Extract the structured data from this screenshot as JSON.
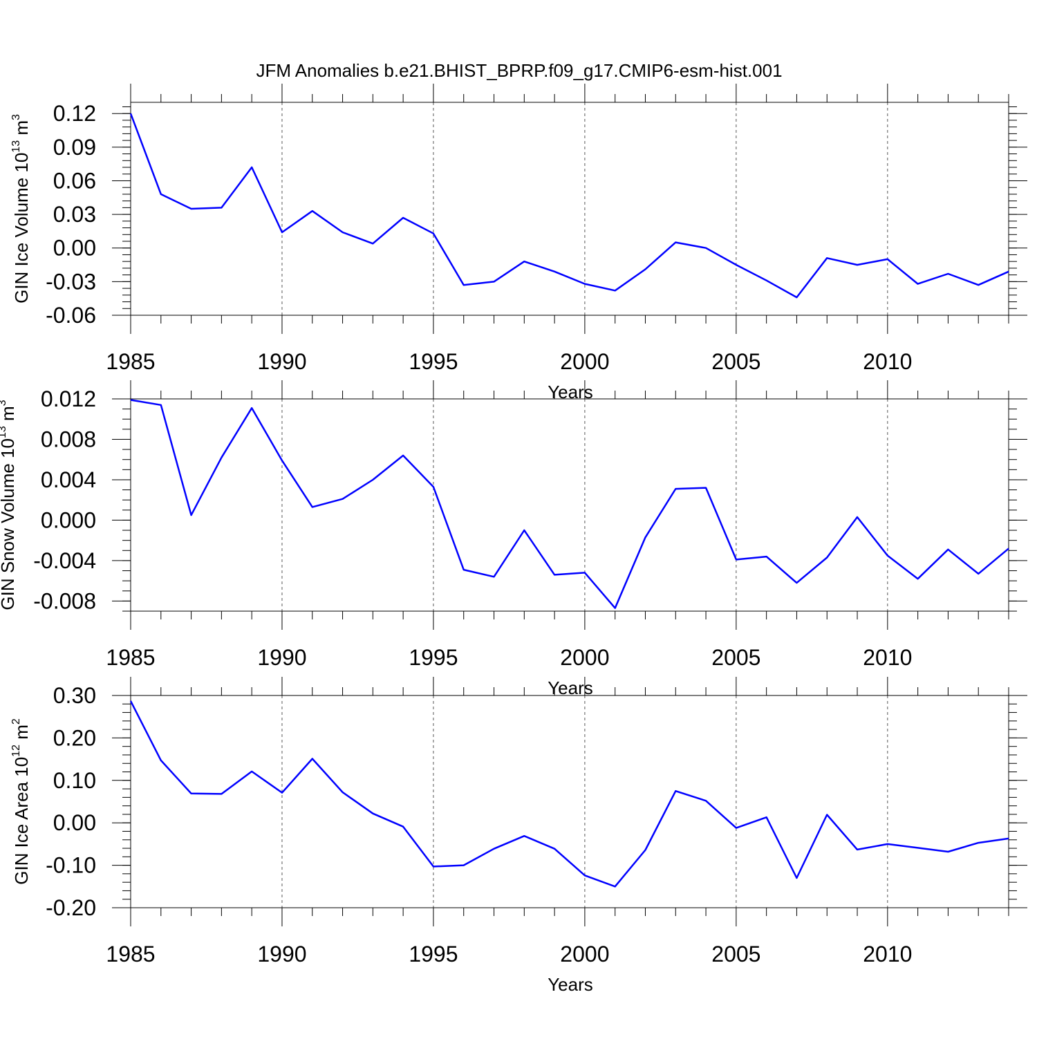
{
  "title": "JFM Anomalies b.e21.BHIST_BPRP.f09_g17.CMIP6-esm-hist.001",
  "chart_data": [
    {
      "type": "line",
      "ylabel": "GIN Ice Volume 10",
      "ylabel_exp": "13",
      "ylabel_unit": " m",
      "ylabel_unit_exp": "3",
      "xlabel": "Years",
      "xlim": [
        1985,
        2014
      ],
      "ylim": [
        -0.06,
        0.13
      ],
      "yticks": [
        -0.06,
        -0.03,
        0.0,
        0.03,
        0.06,
        0.09,
        0.12
      ],
      "ytick_labels": [
        "-0.06",
        "-0.03",
        "0.00",
        "0.03",
        "0.06",
        "0.09",
        "0.12"
      ],
      "yminor_step": 0.006,
      "xticks": [
        1985,
        1990,
        1995,
        2000,
        2005,
        2010
      ],
      "xtick_labels": [
        "1985",
        "1990",
        "1995",
        "2000",
        "2005",
        "2010"
      ],
      "grid": "vertical dashed at major x ticks",
      "color": "#0000ff",
      "x": [
        1985,
        1986,
        1987,
        1988,
        1989,
        1990,
        1991,
        1992,
        1993,
        1994,
        1995,
        1996,
        1997,
        1998,
        1999,
        2000,
        2001,
        2002,
        2003,
        2004,
        2005,
        2006,
        2007,
        2008,
        2009,
        2010,
        2011,
        2012,
        2013,
        2014
      ],
      "values": [
        0.12,
        0.048,
        0.035,
        0.036,
        0.072,
        0.014,
        0.033,
        0.014,
        0.004,
        0.027,
        0.013,
        -0.033,
        -0.03,
        -0.012,
        -0.021,
        -0.032,
        -0.038,
        -0.019,
        0.005,
        0.0,
        -0.015,
        -0.029,
        -0.044,
        -0.009,
        -0.015,
        -0.01,
        -0.032,
        -0.023,
        -0.033,
        -0.021
      ]
    },
    {
      "type": "line",
      "ylabel": "GIN Snow Volume 10",
      "ylabel_exp": "13",
      "ylabel_unit": " m",
      "ylabel_unit_exp": "3",
      "xlabel": "Years",
      "xlim": [
        1985,
        2014
      ],
      "ylim": [
        -0.009,
        0.012
      ],
      "yticks": [
        -0.008,
        -0.004,
        0.0,
        0.004,
        0.008,
        0.012
      ],
      "ytick_labels": [
        "-0.008",
        "-0.004",
        "0.000",
        "0.004",
        "0.008",
        "0.012"
      ],
      "yminor_step": 0.001,
      "xticks": [
        1985,
        1990,
        1995,
        2000,
        2005,
        2010
      ],
      "xtick_labels": [
        "1985",
        "1990",
        "1995",
        "2000",
        "2005",
        "2010"
      ],
      "grid": "vertical dashed at major x ticks",
      "color": "#0000ff",
      "x": [
        1985,
        1986,
        1987,
        1988,
        1989,
        1990,
        1991,
        1992,
        1993,
        1994,
        1995,
        1996,
        1997,
        1998,
        1999,
        2000,
        2001,
        2002,
        2003,
        2004,
        2005,
        2006,
        2007,
        2008,
        2009,
        2010,
        2011,
        2012,
        2013,
        2014
      ],
      "values": [
        0.0119,
        0.0114,
        0.0005,
        0.0062,
        0.0111,
        0.0059,
        0.0013,
        0.0021,
        0.004,
        0.0064,
        0.0033,
        -0.0049,
        -0.0056,
        -0.001,
        -0.0054,
        -0.0052,
        -0.0087,
        -0.0017,
        0.0031,
        0.0032,
        -0.0039,
        -0.0036,
        -0.0062,
        -0.0037,
        0.0003,
        -0.0035,
        -0.0058,
        -0.0029,
        -0.0053,
        -0.0028
      ]
    },
    {
      "type": "line",
      "ylabel": "GIN Ice Area 10",
      "ylabel_exp": "12",
      "ylabel_unit": " m",
      "ylabel_unit_exp": "2",
      "xlabel": "Years",
      "xlim": [
        1985,
        2014
      ],
      "ylim": [
        -0.2,
        0.3
      ],
      "yticks": [
        -0.2,
        -0.1,
        0.0,
        0.1,
        0.2,
        0.3
      ],
      "ytick_labels": [
        "-0.20",
        "-0.10",
        "0.00",
        "0.10",
        "0.20",
        "0.30"
      ],
      "yminor_step": 0.02,
      "xticks": [
        1985,
        1990,
        1995,
        2000,
        2005,
        2010
      ],
      "xtick_labels": [
        "1985",
        "1990",
        "1995",
        "2000",
        "2005",
        "2010"
      ],
      "grid": "vertical dashed at major x ticks",
      "color": "#0000ff",
      "x": [
        1985,
        1986,
        1987,
        1988,
        1989,
        1990,
        1991,
        1992,
        1993,
        1994,
        1995,
        1996,
        1997,
        1998,
        1999,
        2000,
        2001,
        2002,
        2003,
        2004,
        2005,
        2006,
        2007,
        2008,
        2009,
        2010,
        2011,
        2012,
        2013,
        2014
      ],
      "values": [
        0.287,
        0.147,
        0.069,
        0.068,
        0.121,
        0.071,
        0.151,
        0.072,
        0.022,
        -0.009,
        -0.103,
        -0.1,
        -0.061,
        -0.031,
        -0.061,
        -0.124,
        -0.15,
        -0.064,
        0.075,
        0.052,
        -0.012,
        0.013,
        -0.13,
        0.019,
        -0.063,
        -0.05,
        -0.059,
        -0.068,
        -0.047,
        -0.037
      ]
    }
  ]
}
